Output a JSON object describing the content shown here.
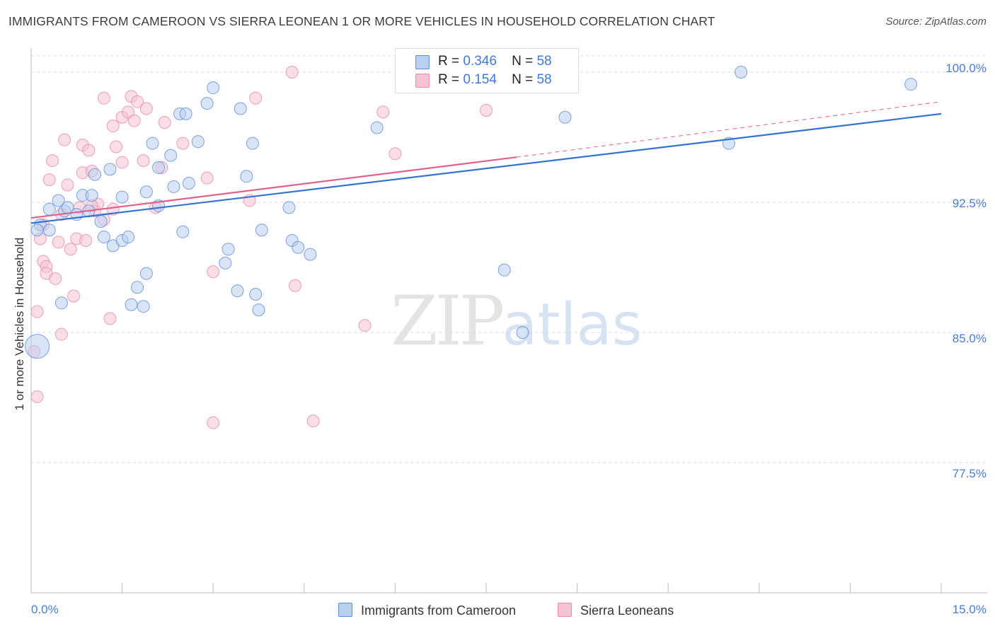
{
  "title": "IMMIGRANTS FROM CAMEROON VS SIERRA LEONEAN 1 OR MORE VEHICLES IN HOUSEHOLD CORRELATION CHART",
  "source": "Source: ZipAtlas.com",
  "watermark": {
    "zip": "ZIP",
    "atlas": "atlas"
  },
  "colors": {
    "blue": "#5b8fd9",
    "blue_fill": "#b9cff0",
    "blue_line": "#3473d0",
    "pink": "#e88aa8",
    "pink_fill": "#f5c3d3",
    "pink_line": "#e0608a",
    "tick_text": "#4a7cd0",
    "grid": "#dcdcdc"
  },
  "legend": {
    "rows": [
      {
        "r_label": "R =",
        "r_value": "0.346",
        "n_label": "N =",
        "n_value": "58"
      },
      {
        "r_label": "R =",
        "r_value": "0.154",
        "n_label": "N =",
        "n_value": "58"
      }
    ]
  },
  "bottom_legend": [
    "Immigrants from Cameroon",
    "Sierra Leoneans"
  ],
  "chart_data": {
    "type": "scatter",
    "title": "IMMIGRANTS FROM CAMEROON VS SIERRA LEONEAN 1 OR MORE VEHICLES IN HOUSEHOLD CORRELATION CHART",
    "xlabel": "",
    "ylabel": "1 or more Vehicles in Household",
    "x_tick_labels": [
      "0.0%",
      "15.0%"
    ],
    "y_tick_labels": [
      "100.0%",
      "92.5%",
      "85.0%",
      "77.5%"
    ],
    "y_ticks": [
      100.0,
      92.5,
      85.0,
      77.5
    ],
    "xlim": [
      0,
      15
    ],
    "ylim": [
      70.0,
      101.1
    ],
    "grid": true,
    "legend_position": "top-center",
    "series": [
      {
        "name": "Immigrants from Cameroon",
        "trend": {
          "x": [
            0,
            15
          ],
          "y": [
            91.3,
            97.6
          ]
        },
        "points": [
          [
            0.15,
            91.2
          ],
          [
            0.1,
            90.9
          ],
          [
            0.3,
            90.9
          ],
          [
            0.3,
            92.1
          ],
          [
            0.45,
            92.6
          ],
          [
            0.55,
            92.0
          ],
          [
            0.6,
            92.2
          ],
          [
            0.75,
            91.8
          ],
          [
            0.85,
            92.9
          ],
          [
            0.95,
            92.0
          ],
          [
            1.0,
            92.9
          ],
          [
            1.05,
            94.1
          ],
          [
            1.15,
            91.4
          ],
          [
            1.3,
            94.4
          ],
          [
            1.2,
            90.5
          ],
          [
            1.35,
            90.0
          ],
          [
            1.5,
            90.3
          ],
          [
            1.5,
            92.8
          ],
          [
            1.6,
            90.5
          ],
          [
            1.75,
            87.6
          ],
          [
            1.65,
            86.6
          ],
          [
            1.9,
            88.4
          ],
          [
            1.9,
            93.1
          ],
          [
            2.0,
            95.9
          ],
          [
            2.1,
            94.5
          ],
          [
            2.1,
            92.3
          ],
          [
            2.3,
            95.2
          ],
          [
            2.35,
            93.4
          ],
          [
            2.45,
            97.6
          ],
          [
            2.5,
            90.8
          ],
          [
            2.55,
            97.6
          ],
          [
            2.6,
            93.6
          ],
          [
            2.75,
            96.0
          ],
          [
            2.9,
            98.2
          ],
          [
            3.0,
            99.1
          ],
          [
            3.2,
            89.0
          ],
          [
            3.25,
            89.8
          ],
          [
            3.4,
            87.4
          ],
          [
            3.45,
            97.9
          ],
          [
            3.55,
            94.0
          ],
          [
            3.7,
            87.2
          ],
          [
            3.75,
            86.3
          ],
          [
            3.8,
            90.9
          ],
          [
            4.25,
            92.2
          ],
          [
            4.3,
            90.3
          ],
          [
            4.4,
            89.9
          ],
          [
            4.6,
            89.5
          ],
          [
            5.7,
            96.8
          ],
          [
            7.8,
            88.6
          ],
          [
            8.1,
            85.0
          ],
          [
            8.8,
            97.4
          ],
          [
            11.5,
            95.9
          ],
          [
            11.7,
            100.0
          ],
          [
            14.5,
            99.3
          ],
          [
            0.1,
            84.2
          ],
          [
            0.5,
            86.7
          ],
          [
            3.65,
            95.9
          ],
          [
            1.85,
            86.5
          ]
        ]
      },
      {
        "name": "Sierra Leoneans",
        "trend": {
          "x": [
            0,
            8.0
          ],
          "y": [
            91.6,
            95.1
          ]
        },
        "trend_ext": {
          "x": [
            8.0,
            15
          ],
          "y": [
            95.1,
            98.3
          ]
        },
        "points": [
          [
            0.05,
            83.9
          ],
          [
            0.1,
            81.3
          ],
          [
            0.1,
            86.2
          ],
          [
            0.15,
            90.4
          ],
          [
            0.2,
            89.1
          ],
          [
            0.25,
            88.8
          ],
          [
            0.25,
            88.4
          ],
          [
            0.3,
            93.8
          ],
          [
            0.35,
            94.9
          ],
          [
            0.4,
            88.1
          ],
          [
            0.5,
            91.8
          ],
          [
            0.5,
            84.9
          ],
          [
            0.55,
            96.1
          ],
          [
            0.6,
            93.5
          ],
          [
            0.65,
            89.8
          ],
          [
            0.7,
            87.1
          ],
          [
            0.75,
            90.4
          ],
          [
            0.8,
            92.2
          ],
          [
            0.85,
            94.2
          ],
          [
            0.85,
            95.8
          ],
          [
            0.9,
            90.3
          ],
          [
            0.95,
            95.5
          ],
          [
            1.0,
            94.3
          ],
          [
            1.05,
            92.0
          ],
          [
            1.1,
            92.4
          ],
          [
            1.2,
            91.5
          ],
          [
            1.2,
            98.5
          ],
          [
            1.3,
            85.8
          ],
          [
            1.35,
            92.1
          ],
          [
            1.35,
            96.9
          ],
          [
            1.4,
            95.7
          ],
          [
            1.5,
            94.8
          ],
          [
            1.5,
            97.4
          ],
          [
            1.6,
            97.7
          ],
          [
            1.65,
            98.6
          ],
          [
            1.7,
            97.2
          ],
          [
            1.75,
            98.3
          ],
          [
            1.85,
            94.9
          ],
          [
            1.9,
            97.9
          ],
          [
            2.05,
            92.2
          ],
          [
            2.15,
            94.5
          ],
          [
            2.2,
            97.1
          ],
          [
            2.5,
            95.9
          ],
          [
            2.9,
            93.9
          ],
          [
            3.0,
            88.5
          ],
          [
            3.0,
            79.8
          ],
          [
            3.6,
            92.6
          ],
          [
            3.7,
            98.5
          ],
          [
            4.3,
            100.0
          ],
          [
            4.35,
            87.7
          ],
          [
            4.65,
            79.9
          ],
          [
            5.5,
            85.4
          ],
          [
            5.8,
            97.7
          ],
          [
            6.0,
            95.3
          ],
          [
            7.5,
            97.8
          ],
          [
            0.2,
            91.2
          ],
          [
            0.45,
            90.2
          ],
          [
            1.0,
            92.3
          ]
        ]
      }
    ]
  }
}
